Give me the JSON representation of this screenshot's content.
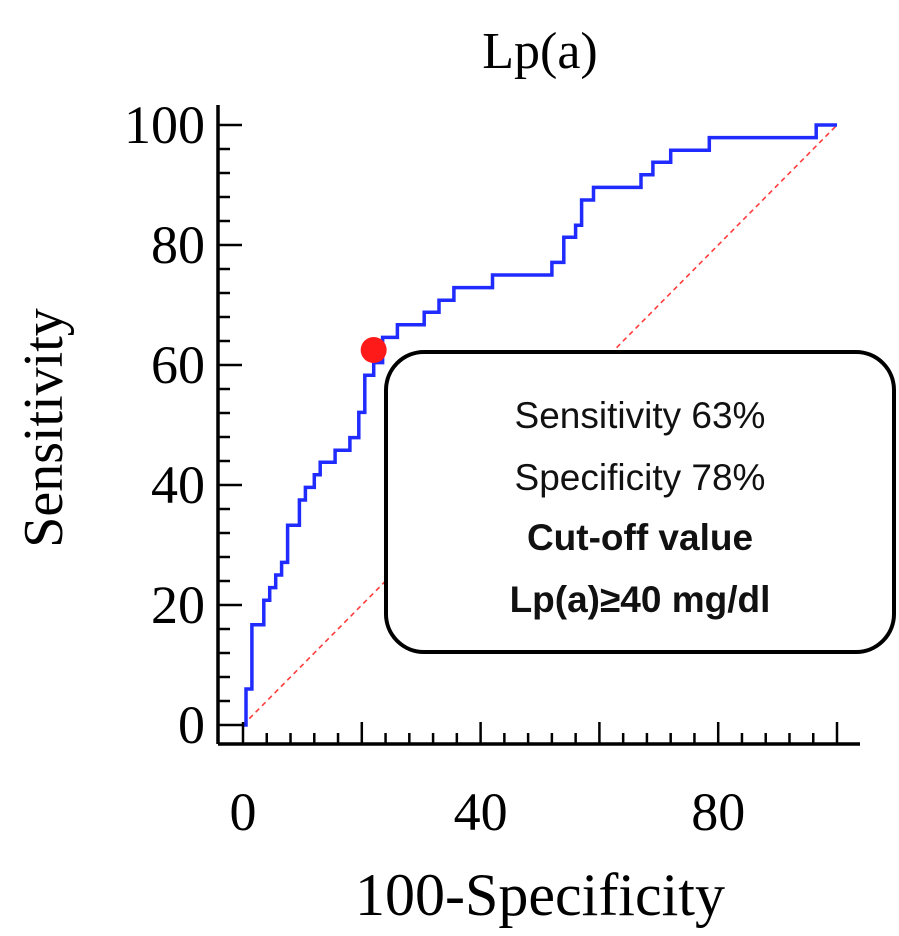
{
  "chart_data": {
    "type": "line",
    "title": "Lp(a)",
    "xlabel": "100-Specificity",
    "ylabel": "Sensitivity",
    "xlim": [
      0,
      100
    ],
    "ylim": [
      0,
      100
    ],
    "x_ticks": [
      0,
      40,
      80
    ],
    "y_ticks": [
      0,
      20,
      40,
      60,
      80,
      100
    ],
    "series": [
      {
        "color": "#1f2bff",
        "style": "step",
        "points": [
          [
            0,
            0
          ],
          [
            0.5,
            0
          ],
          [
            0.5,
            6
          ],
          [
            1.5,
            6
          ],
          [
            1.5,
            16.7
          ],
          [
            3.5,
            16.7
          ],
          [
            3.5,
            20.8
          ],
          [
            4.5,
            20.8
          ],
          [
            4.5,
            22.9
          ],
          [
            5.5,
            22.9
          ],
          [
            5.5,
            25
          ],
          [
            6.5,
            25
          ],
          [
            6.5,
            27.1
          ],
          [
            7.5,
            27.1
          ],
          [
            7.5,
            33.3
          ],
          [
            9.5,
            33.3
          ],
          [
            9.5,
            37.5
          ],
          [
            10.5,
            37.5
          ],
          [
            10.5,
            39.6
          ],
          [
            12,
            39.6
          ],
          [
            12,
            41.7
          ],
          [
            13,
            41.7
          ],
          [
            13,
            43.8
          ],
          [
            15.5,
            43.8
          ],
          [
            15.5,
            45.8
          ],
          [
            18,
            45.8
          ],
          [
            18,
            47.9
          ],
          [
            19.5,
            47.9
          ],
          [
            19.5,
            52.1
          ],
          [
            20.5,
            52.1
          ],
          [
            20.5,
            58.3
          ],
          [
            22,
            58.3
          ],
          [
            22,
            60.4
          ],
          [
            23.5,
            60.4
          ],
          [
            23.5,
            64.6
          ],
          [
            26,
            64.6
          ],
          [
            26,
            66.7
          ],
          [
            30.5,
            66.7
          ],
          [
            30.5,
            68.8
          ],
          [
            33,
            68.8
          ],
          [
            33,
            70.8
          ],
          [
            35.5,
            70.8
          ],
          [
            35.5,
            72.9
          ],
          [
            42,
            72.9
          ],
          [
            42,
            75
          ],
          [
            52,
            75
          ],
          [
            52,
            77.1
          ],
          [
            54,
            77.1
          ],
          [
            54,
            81.3
          ],
          [
            56,
            81.3
          ],
          [
            56,
            83.3
          ],
          [
            57,
            83.3
          ],
          [
            57,
            87.5
          ],
          [
            59,
            87.5
          ],
          [
            59,
            89.6
          ],
          [
            67,
            89.6
          ],
          [
            67,
            91.7
          ],
          [
            69,
            91.7
          ],
          [
            69,
            93.8
          ],
          [
            72,
            93.8
          ],
          [
            72,
            95.8
          ],
          [
            78.5,
            95.8
          ],
          [
            78.5,
            97.9
          ],
          [
            96.5,
            97.9
          ],
          [
            96.5,
            100
          ],
          [
            100,
            100
          ]
        ]
      },
      {
        "color": "#ff3b3b",
        "style": "dashed",
        "points": [
          [
            0,
            0
          ],
          [
            100,
            100
          ]
        ]
      }
    ],
    "highlight_point": {
      "x": 22,
      "y": 62.5,
      "color": "#ff1a1a"
    },
    "annotation": {
      "lines": [
        "Sensitivity 63%",
        "Specificity 78%"
      ],
      "bold_lines": [
        "Cut-off value",
        "Lp(a)≥40 mg/dl"
      ]
    }
  }
}
